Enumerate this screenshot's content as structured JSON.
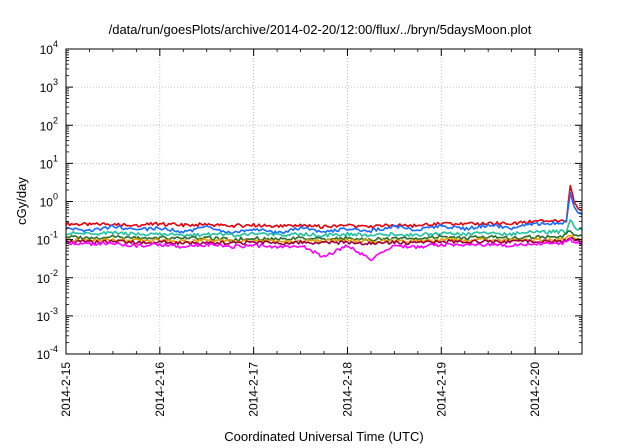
{
  "chart_data": {
    "type": "line",
    "title": "/data/run/goesPlots/archive/2014-02-20/12:00/flux/../bryn/5daysMoon.plot",
    "xlabel": "Coordinated Universal Time (UTC)",
    "ylabel": "cGy/day",
    "y_scale": "log",
    "ylim": [
      0.0001,
      10000
    ],
    "xlim": [
      "2014-02-15 00:00",
      "2014-02-20 12:00"
    ],
    "x_ticks": [
      "2014-2-15",
      "2014-2-16",
      "2014-2-17",
      "2014-2-18",
      "2014-2-19",
      "2014-2-20"
    ],
    "y_ticks": [
      {
        "base": "10",
        "exp": "-4"
      },
      {
        "base": "10",
        "exp": "-3"
      },
      {
        "base": "10",
        "exp": "-2"
      },
      {
        "base": "10",
        "exp": "-1"
      },
      {
        "base": "10",
        "exp": "0"
      },
      {
        "base": "10",
        "exp": "1"
      },
      {
        "base": "10",
        "exp": "2"
      },
      {
        "base": "10",
        "exp": "3"
      },
      {
        "base": "10",
        "exp": "4"
      }
    ],
    "grid": true,
    "legend": "none",
    "x": [
      "2014-02-15 00:00",
      "2014-02-15 06:00",
      "2014-02-15 12:00",
      "2014-02-15 18:00",
      "2014-02-16 00:00",
      "2014-02-16 06:00",
      "2014-02-16 12:00",
      "2014-02-16 18:00",
      "2014-02-17 00:00",
      "2014-02-17 06:00",
      "2014-02-17 12:00",
      "2014-02-17 18:00",
      "2014-02-18 00:00",
      "2014-02-18 06:00",
      "2014-02-18 12:00",
      "2014-02-18 18:00",
      "2014-02-19 00:00",
      "2014-02-19 06:00",
      "2014-02-19 12:00",
      "2014-02-19 18:00",
      "2014-02-20 00:00",
      "2014-02-20 06:00",
      "2014-02-20 08:00",
      "2014-02-20 09:00",
      "2014-02-20 10:00",
      "2014-02-20 11:00",
      "2014-02-20 12:00"
    ],
    "series": [
      {
        "color": "#e8000b",
        "values": [
          0.26,
          0.25,
          0.26,
          0.24,
          0.26,
          0.24,
          0.25,
          0.23,
          0.24,
          0.22,
          0.23,
          0.22,
          0.23,
          0.22,
          0.24,
          0.23,
          0.26,
          0.25,
          0.27,
          0.26,
          0.3,
          0.32,
          0.32,
          2.5,
          1.0,
          0.7,
          0.6
        ]
      },
      {
        "color": "#1a6bff",
        "values": [
          0.2,
          0.17,
          0.22,
          0.18,
          0.2,
          0.16,
          0.21,
          0.15,
          0.19,
          0.15,
          0.2,
          0.16,
          0.19,
          0.17,
          0.22,
          0.18,
          0.23,
          0.19,
          0.24,
          0.2,
          0.26,
          0.27,
          0.3,
          1.8,
          0.7,
          0.5,
          0.45
        ]
      },
      {
        "color": "#20c0a0",
        "values": [
          0.15,
          0.14,
          0.15,
          0.14,
          0.14,
          0.13,
          0.14,
          0.13,
          0.14,
          0.13,
          0.14,
          0.13,
          0.14,
          0.13,
          0.14,
          0.13,
          0.15,
          0.14,
          0.15,
          0.14,
          0.16,
          0.16,
          0.17,
          0.35,
          0.22,
          0.19,
          0.18
        ]
      },
      {
        "color": "#2d6e2d",
        "values": [
          0.12,
          0.11,
          0.12,
          0.11,
          0.11,
          0.11,
          0.11,
          0.1,
          0.11,
          0.1,
          0.11,
          0.1,
          0.11,
          0.1,
          0.11,
          0.11,
          0.12,
          0.11,
          0.12,
          0.11,
          0.12,
          0.12,
          0.13,
          0.18,
          0.14,
          0.13,
          0.13
        ]
      },
      {
        "color": "#e8a000",
        "values": [
          0.1,
          0.095,
          0.1,
          0.095,
          0.095,
          0.09,
          0.095,
          0.09,
          0.095,
          0.09,
          0.095,
          0.09,
          0.095,
          0.09,
          0.095,
          0.09,
          0.1,
          0.095,
          0.1,
          0.095,
          0.1,
          0.1,
          0.11,
          0.13,
          0.11,
          0.105,
          0.1
        ]
      },
      {
        "color": "#9a0040",
        "values": [
          0.09,
          0.085,
          0.09,
          0.085,
          0.085,
          0.08,
          0.085,
          0.08,
          0.085,
          0.08,
          0.085,
          0.08,
          0.085,
          0.08,
          0.085,
          0.08,
          0.09,
          0.085,
          0.09,
          0.085,
          0.09,
          0.09,
          0.095,
          0.11,
          0.1,
          0.095,
          0.09
        ]
      },
      {
        "color": "#ff00ff",
        "values": [
          0.085,
          0.075,
          0.08,
          0.07,
          0.075,
          0.065,
          0.075,
          0.065,
          0.07,
          0.065,
          0.07,
          0.035,
          0.07,
          0.03,
          0.07,
          0.065,
          0.075,
          0.07,
          0.075,
          0.07,
          0.08,
          0.08,
          0.085,
          0.1,
          0.09,
          0.085,
          0.08
        ]
      }
    ]
  }
}
